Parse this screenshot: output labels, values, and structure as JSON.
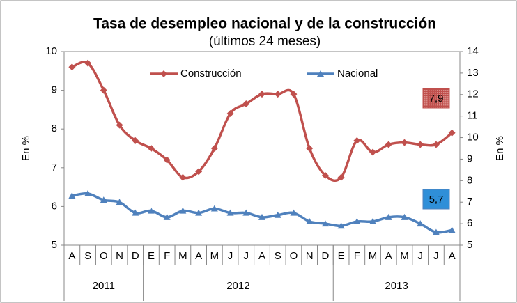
{
  "chart_data": {
    "type": "line",
    "title": "Tasa de desempleo nacional y de la construcción",
    "subtitle": "(últimos 24 meses)",
    "y_label": "En %",
    "y2_label": "En %",
    "categories": [
      "A",
      "S",
      "O",
      "N",
      "D",
      "E",
      "F",
      "M",
      "A",
      "M",
      "J",
      "J",
      "A",
      "S",
      "O",
      "N",
      "D",
      "E",
      "F",
      "M",
      "A",
      "M",
      "J",
      "J",
      "A"
    ],
    "year_groups": [
      {
        "label": "2011",
        "span": 5
      },
      {
        "label": "2012",
        "span": 12
      },
      {
        "label": "2013",
        "span": 8
      }
    ],
    "series": [
      {
        "name": "Construcción",
        "color": "#c0504d",
        "marker": "diamond",
        "values": [
          9.6,
          9.7,
          9.0,
          8.1,
          7.7,
          7.5,
          7.2,
          6.75,
          6.9,
          7.5,
          8.4,
          8.65,
          8.9,
          8.9,
          8.9,
          7.5,
          6.8,
          6.75,
          7.7,
          7.4,
          7.6,
          7.65,
          7.6,
          7.6,
          7.9
        ]
      },
      {
        "name": "Nacional",
        "color": "#4f81bd",
        "marker": "triangle",
        "axis": "y2",
        "values": [
          7.3,
          7.4,
          7.1,
          7.0,
          6.5,
          6.6,
          6.3,
          6.6,
          6.5,
          6.7,
          6.5,
          6.5,
          6.3,
          6.4,
          6.5,
          6.1,
          6.0,
          5.9,
          6.1,
          6.1,
          6.3,
          6.3,
          6.0,
          5.6,
          5.7
        ]
      }
    ],
    "annotations": [
      "7,9",
      "5,7"
    ],
    "ylim": [
      5,
      10
    ],
    "yticks": [
      5,
      6,
      7,
      8,
      9,
      10
    ],
    "y2lim": [
      5,
      14
    ],
    "y2ticks": [
      5,
      6,
      7,
      8,
      9,
      10,
      11,
      12,
      13,
      14
    ],
    "legend": "top",
    "grid": false
  }
}
